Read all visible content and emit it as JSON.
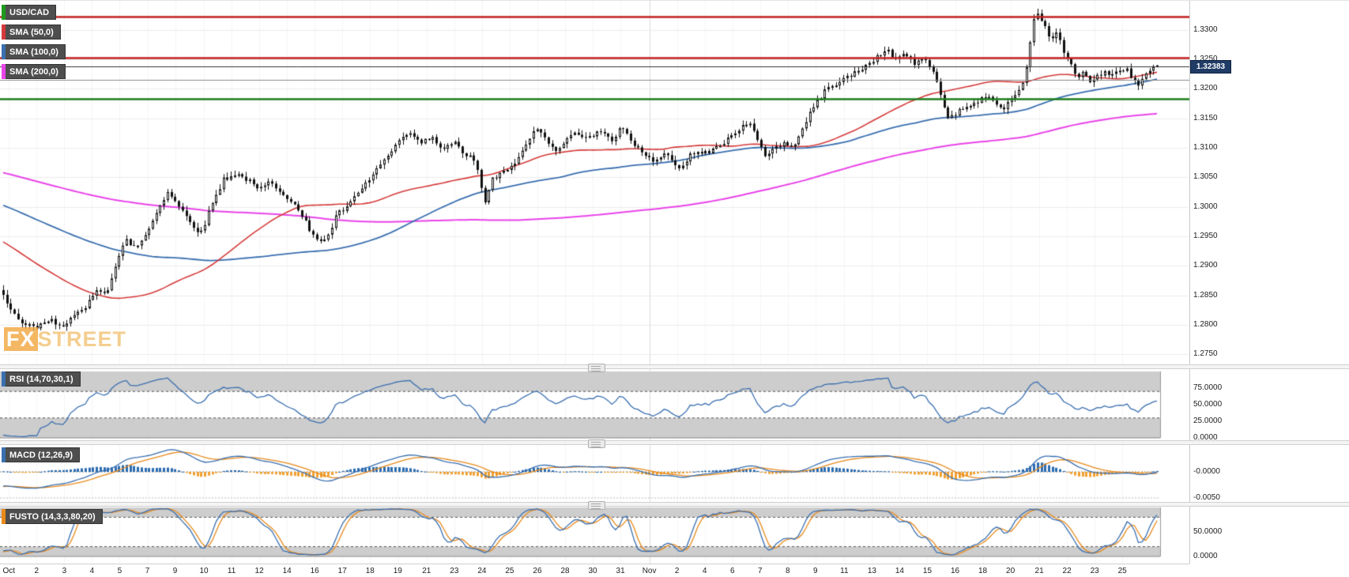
{
  "colors": {
    "up_candle": "#ffffff",
    "down_candle": "#111111",
    "candle_border": "#111111",
    "sma50": "#d63a3a",
    "sma100": "#3a6fb0",
    "sma200": "#e944e9",
    "rsi_line": "#3a6fb0",
    "macd_line": "#3a6fb0",
    "macd_signal": "#e8891a",
    "macd_hist_pos": "#2b6cb0",
    "macd_hist_neg": "#f0a030",
    "stoch_k": "#3a6fb0",
    "stoch_d": "#e8891a",
    "band_fill": "#cdcdcd",
    "grid_h": "#ededed",
    "grid_v": "#f5f5f5",
    "month_line": "#dcdcdc",
    "axis_text": "#222222",
    "badge_bg": "#1f3b66"
  },
  "main_chart": {
    "legend": [
      {
        "label": "USD/CAD",
        "color": "#1e9b1e"
      },
      {
        "label": "SMA (50,0)",
        "color": "#d63a3a"
      },
      {
        "label": "SMA (100,0)",
        "color": "#3a6fb0"
      },
      {
        "label": "SMA (200,0)",
        "color": "#e944e9"
      }
    ],
    "price_axis": {
      "ticks": [
        {
          "label": "1.3300",
          "value": 1.33
        },
        {
          "label": "1.3250",
          "value": 1.325
        },
        {
          "label": "1.3200",
          "value": 1.32
        },
        {
          "label": "1.3150",
          "value": 1.315
        },
        {
          "label": "1.3100",
          "value": 1.31
        },
        {
          "label": "1.3050",
          "value": 1.305
        },
        {
          "label": "1.3000",
          "value": 1.3
        },
        {
          "label": "1.2950",
          "value": 1.295
        },
        {
          "label": "1.2900",
          "value": 1.29
        },
        {
          "label": "1.2850",
          "value": 1.285
        },
        {
          "label": "1.2800",
          "value": 1.28
        },
        {
          "label": "1.2750",
          "value": 1.275
        }
      ]
    },
    "levels": [
      {
        "name": "resistance-upper",
        "value": 1.3322,
        "color": "#c02020",
        "width": 2.4
      },
      {
        "name": "resistance-lower",
        "value": 1.3252,
        "color": "#c02020",
        "width": 2.4
      },
      {
        "name": "current-price-line",
        "value": 1.32383,
        "color": "#333333",
        "width": 1
      },
      {
        "name": "minor-level",
        "value": 1.3215,
        "color": "#8a8a8a",
        "width": 1
      },
      {
        "name": "support-green",
        "value": 1.3183,
        "color": "#1e7d1e",
        "width": 2.4
      }
    ],
    "current_price": {
      "label": "1.32383",
      "value": 1.32383
    },
    "watermark_fx": "FX",
    "watermark_street": "STREET"
  },
  "rsi_panel": {
    "label": "RSI (14,70,30,1)",
    "chip_color": "#3a6fb0",
    "upper": 70,
    "lower": 30,
    "ticks": [
      {
        "label": "75.0000",
        "value": 75
      },
      {
        "label": "50.0000",
        "value": 50
      },
      {
        "label": "25.0000",
        "value": 25
      },
      {
        "label": "0.0000",
        "value": 0
      }
    ]
  },
  "macd_panel": {
    "label": "MACD (12,26,9)",
    "chip_color": "#3a6fb0",
    "ticks": [
      {
        "label": "-0.0000",
        "value": 0
      },
      {
        "label": "-0.0050",
        "value": -0.005
      }
    ]
  },
  "fusto_panel": {
    "label": "FUSTO (14,3,3,80,20)",
    "chip_color": "#e8891a",
    "upper": 80,
    "lower": 20,
    "ticks": [
      {
        "label": "50.0000",
        "value": 50
      },
      {
        "label": "0.0000",
        "value": 0
      }
    ]
  },
  "date_axis": {
    "labels": [
      {
        "t": "Oct",
        "x": 0.005
      },
      {
        "t": "2",
        "x": 0.029
      },
      {
        "t": "3",
        "x": 0.053
      },
      {
        "t": "4",
        "x": 0.077
      },
      {
        "t": "5",
        "x": 0.101
      },
      {
        "t": "7",
        "x": 0.125
      },
      {
        "t": "9",
        "x": 0.149
      },
      {
        "t": "10",
        "x": 0.174
      },
      {
        "t": "11",
        "x": 0.198
      },
      {
        "t": "12",
        "x": 0.222
      },
      {
        "t": "14",
        "x": 0.246
      },
      {
        "t": "16",
        "x": 0.27
      },
      {
        "t": "17",
        "x": 0.294
      },
      {
        "t": "18",
        "x": 0.318
      },
      {
        "t": "19",
        "x": 0.342
      },
      {
        "t": "21",
        "x": 0.367
      },
      {
        "t": "23",
        "x": 0.391
      },
      {
        "t": "24",
        "x": 0.415
      },
      {
        "t": "25",
        "x": 0.439
      },
      {
        "t": "26",
        "x": 0.463
      },
      {
        "t": "28",
        "x": 0.487
      },
      {
        "t": "30",
        "x": 0.511
      },
      {
        "t": "31",
        "x": 0.535
      },
      {
        "t": "Nov",
        "x": 0.56
      },
      {
        "t": "2",
        "x": 0.584
      },
      {
        "t": "4",
        "x": 0.608
      },
      {
        "t": "6",
        "x": 0.632
      },
      {
        "t": "7",
        "x": 0.656
      },
      {
        "t": "8",
        "x": 0.68
      },
      {
        "t": "9",
        "x": 0.704
      },
      {
        "t": "11",
        "x": 0.729
      },
      {
        "t": "13",
        "x": 0.753
      },
      {
        "t": "14",
        "x": 0.777
      },
      {
        "t": "15",
        "x": 0.801
      },
      {
        "t": "16",
        "x": 0.825
      },
      {
        "t": "18",
        "x": 0.849
      },
      {
        "t": "20",
        "x": 0.873
      },
      {
        "t": "21",
        "x": 0.898
      },
      {
        "t": "22",
        "x": 0.922
      },
      {
        "t": "23",
        "x": 0.946
      },
      {
        "t": "25",
        "x": 0.97
      }
    ]
  },
  "chart_data": {
    "type": "candlestick",
    "symbol": "USD/CAD",
    "title": "USD/CAD",
    "price_top": 1.3349,
    "price_bottom": 1.2733,
    "candle_count": 310,
    "warmup_count": 200,
    "seed": 42,
    "overlays": [
      {
        "name": "SMA",
        "period": 50
      },
      {
        "name": "SMA",
        "period": 100
      },
      {
        "name": "SMA",
        "period": 200
      }
    ],
    "indicators": [
      {
        "name": "RSI",
        "params": [
          14,
          70,
          30,
          1
        ]
      },
      {
        "name": "MACD",
        "params": [
          12,
          26,
          9
        ]
      },
      {
        "name": "FUSTO",
        "params": [
          14,
          3,
          3,
          80,
          20
        ]
      }
    ],
    "price_anchors": [
      [
        0.0,
        1.2848
      ],
      [
        0.006,
        1.2824
      ],
      [
        0.014,
        1.2806
      ],
      [
        0.022,
        1.2798
      ],
      [
        0.03,
        1.2795
      ],
      [
        0.04,
        1.2809
      ],
      [
        0.05,
        1.2799
      ],
      [
        0.06,
        1.2813
      ],
      [
        0.07,
        1.2824
      ],
      [
        0.08,
        1.2861
      ],
      [
        0.09,
        1.2857
      ],
      [
        0.098,
        1.2903
      ],
      [
        0.106,
        1.2944
      ],
      [
        0.115,
        1.293
      ],
      [
        0.125,
        1.2958
      ],
      [
        0.135,
        1.3001
      ],
      [
        0.143,
        1.3027
      ],
      [
        0.152,
        1.3
      ],
      [
        0.162,
        1.2977
      ],
      [
        0.171,
        1.2953
      ],
      [
        0.181,
        1.3006
      ],
      [
        0.191,
        1.3047
      ],
      [
        0.201,
        1.3056
      ],
      [
        0.211,
        1.3047
      ],
      [
        0.221,
        1.3028
      ],
      [
        0.231,
        1.3042
      ],
      [
        0.241,
        1.3027
      ],
      [
        0.251,
        1.3007
      ],
      [
        0.261,
        1.2976
      ],
      [
        0.271,
        1.2947
      ],
      [
        0.279,
        1.2941
      ],
      [
        0.289,
        1.2986
      ],
      [
        0.301,
        1.3006
      ],
      [
        0.313,
        1.3036
      ],
      [
        0.326,
        1.3069
      ],
      [
        0.339,
        1.3099
      ],
      [
        0.351,
        1.3127
      ],
      [
        0.361,
        1.3107
      ],
      [
        0.371,
        1.3117
      ],
      [
        0.381,
        1.3097
      ],
      [
        0.391,
        1.3108
      ],
      [
        0.401,
        1.3088
      ],
      [
        0.41,
        1.3075
      ],
      [
        0.417,
        1.3002
      ],
      [
        0.424,
        1.3048
      ],
      [
        0.436,
        1.306
      ],
      [
        0.45,
        1.3092
      ],
      [
        0.461,
        1.3134
      ],
      [
        0.47,
        1.3116
      ],
      [
        0.479,
        1.3098
      ],
      [
        0.488,
        1.3112
      ],
      [
        0.497,
        1.3127
      ],
      [
        0.507,
        1.3117
      ],
      [
        0.517,
        1.3127
      ],
      [
        0.527,
        1.3111
      ],
      [
        0.536,
        1.3138
      ],
      [
        0.546,
        1.3107
      ],
      [
        0.556,
        1.3087
      ],
      [
        0.566,
        1.3077
      ],
      [
        0.576,
        1.3091
      ],
      [
        0.586,
        1.3066
      ],
      [
        0.596,
        1.3087
      ],
      [
        0.606,
        1.3092
      ],
      [
        0.616,
        1.3097
      ],
      [
        0.626,
        1.3111
      ],
      [
        0.636,
        1.3131
      ],
      [
        0.646,
        1.3142
      ],
      [
        0.653,
        1.3117
      ],
      [
        0.659,
        1.3087
      ],
      [
        0.666,
        1.3097
      ],
      [
        0.676,
        1.3107
      ],
      [
        0.686,
        1.3104
      ],
      [
        0.696,
        1.3147
      ],
      [
        0.706,
        1.3181
      ],
      [
        0.716,
        1.3204
      ],
      [
        0.726,
        1.3214
      ],
      [
        0.736,
        1.3224
      ],
      [
        0.746,
        1.3237
      ],
      [
        0.756,
        1.3251
      ],
      [
        0.764,
        1.3267
      ],
      [
        0.773,
        1.3251
      ],
      [
        0.781,
        1.3259
      ],
      [
        0.791,
        1.3241
      ],
      [
        0.799,
        1.3251
      ],
      [
        0.806,
        1.3228
      ],
      [
        0.812,
        1.3192
      ],
      [
        0.818,
        1.3152
      ],
      [
        0.825,
        1.3158
      ],
      [
        0.833,
        1.3168
      ],
      [
        0.843,
        1.3178
      ],
      [
        0.851,
        1.3188
      ],
      [
        0.858,
        1.3177
      ],
      [
        0.865,
        1.3164
      ],
      [
        0.872,
        1.318
      ],
      [
        0.879,
        1.3193
      ],
      [
        0.885,
        1.3216
      ],
      [
        0.889,
        1.3264
      ],
      [
        0.893,
        1.3322
      ],
      [
        0.898,
        1.3327
      ],
      [
        0.903,
        1.3304
      ],
      [
        0.908,
        1.3284
      ],
      [
        0.913,
        1.3294
      ],
      [
        0.918,
        1.3267
      ],
      [
        0.924,
        1.3244
      ],
      [
        0.93,
        1.3221
      ],
      [
        0.936,
        1.3229
      ],
      [
        0.942,
        1.3211
      ],
      [
        0.948,
        1.3221
      ],
      [
        0.954,
        1.3229
      ],
      [
        0.96,
        1.3219
      ],
      [
        0.966,
        1.3229
      ],
      [
        0.972,
        1.3236
      ],
      [
        0.978,
        1.3221
      ],
      [
        0.984,
        1.3205
      ],
      [
        0.99,
        1.3225
      ],
      [
        1.0,
        1.3238
      ]
    ],
    "warmup_anchors": [
      [
        0.0,
        1.314
      ],
      [
        0.4,
        1.3098
      ],
      [
        0.7,
        1.3058
      ],
      [
        0.85,
        1.2978
      ],
      [
        0.95,
        1.2878
      ],
      [
        1.0,
        1.2846
      ]
    ]
  }
}
